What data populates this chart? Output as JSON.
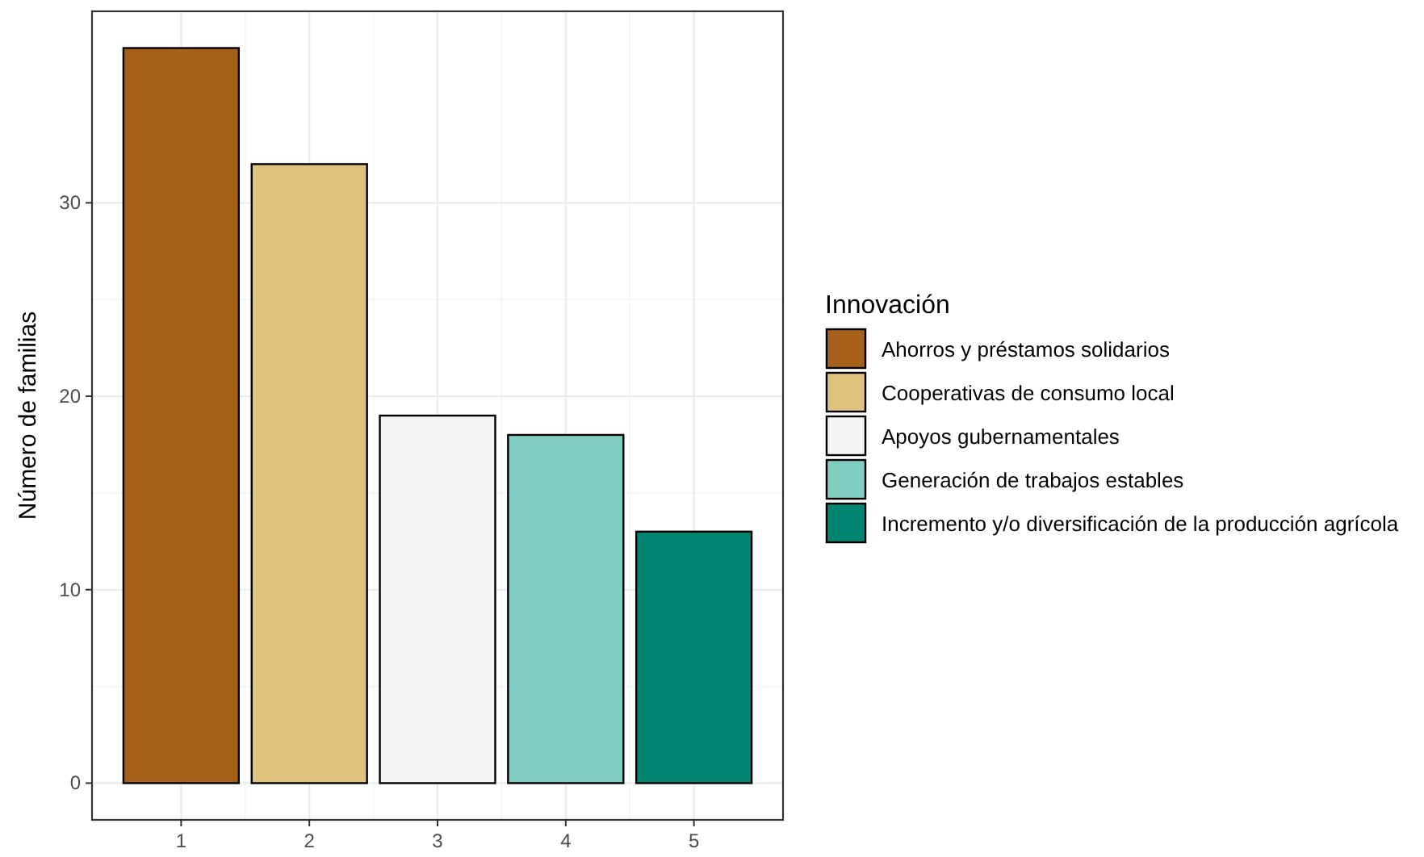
{
  "chart_data": {
    "type": "bar",
    "ylabel": "Número de familias",
    "legend_title": "Innovación",
    "legend": "right",
    "grid": true,
    "xlim": [
      0.305,
      5.695
    ],
    "xticks": [
      1,
      2,
      3,
      4,
      5
    ],
    "ylim": [
      -1.9,
      39.9
    ],
    "yticks": [
      0,
      10,
      20,
      30
    ],
    "series": [
      {
        "name": "Ahorros y préstamos solidarios",
        "color": "#a6611a",
        "x": [
          1
        ],
        "values": [
          38
        ]
      },
      {
        "name": "Cooperativas de consumo local",
        "color": "#dfc27d",
        "x": [
          2
        ],
        "values": [
          32
        ]
      },
      {
        "name": "Apoyos gubernamentales",
        "color": "#f5f5f5",
        "x": [
          3
        ],
        "values": [
          19
        ]
      },
      {
        "name": "Generación de trabajos estables",
        "color": "#80cdc1",
        "x": [
          4
        ],
        "values": [
          18
        ]
      },
      {
        "name": "Incremento y/o diversificación de la producción agrícola",
        "color": "#018571",
        "x": [
          5
        ],
        "values": [
          13
        ]
      }
    ]
  }
}
